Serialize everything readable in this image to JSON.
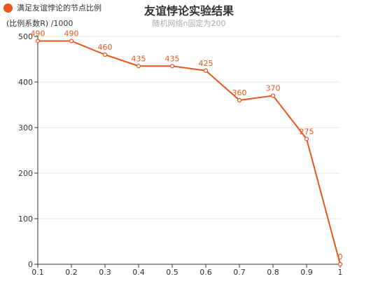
{
  "legend": {
    "label": "满足友谊悖论的节点比例"
  },
  "colors": {
    "series": "#e8561b",
    "axis": "#333333",
    "grid": "#e6e6e6"
  },
  "chart_data": {
    "type": "line",
    "title": "友谊悖论实验结果",
    "subtitle": "随机网络n固定为200",
    "ylabel": "(比例系数R) /1000",
    "xlabel": "",
    "x": [
      "0.1",
      "0.2",
      "0.3",
      "0.4",
      "0.5",
      "0.6",
      "0.7",
      "0.8",
      "0.9",
      "1"
    ],
    "series": [
      {
        "name": "满足友谊悖论的节点比例",
        "values": [
          490,
          490,
          460,
          435,
          435,
          425,
          360,
          370,
          275,
          0
        ]
      }
    ],
    "ylim": [
      0,
      500
    ],
    "yticks": [
      0,
      100,
      200,
      300,
      400,
      500
    ],
    "grid": true,
    "legend_position": "top-left"
  }
}
